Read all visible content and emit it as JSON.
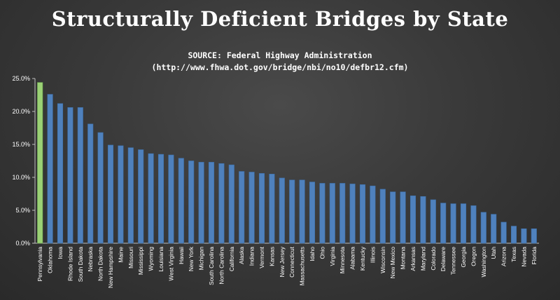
{
  "chart_data": {
    "type": "bar",
    "title": "Structurally Deficient Bridges by State",
    "subtitle_lines": [
      "SOURCE: Federal Highway Administration",
      "(http://www.fhwa.dot.gov/bridge/nbi/no10/defbr12.cfm)"
    ],
    "xlabel": "",
    "ylabel": "",
    "ylim": [
      0,
      0.25
    ],
    "yticks": [
      "0.0%",
      "5.0%",
      "10.0%",
      "15.0%",
      "20.0%",
      "25.0%"
    ],
    "grid": false,
    "categories": [
      "Pennsylvania",
      "Oklahoma",
      "Iowa",
      "Rhode Island",
      "South Dakota",
      "Nebraska",
      "North Dakota",
      "New Hampshire",
      "Maine",
      "Missouri",
      "Mississippi",
      "Wyoming",
      "Louisiana",
      "West Virginia",
      "Hawaii",
      "New York",
      "Michigan",
      "South Carolina",
      "North Carolina",
      "California",
      "Alaska",
      "Indiana",
      "Vermont",
      "Kansas",
      "New Jersey",
      "Connecticut",
      "Massachusetts",
      "Idaho",
      "Ohio",
      "Virginia",
      "Minnesota",
      "Alabama",
      "Kentucky",
      "Illinois",
      "Wisconsin",
      "New Mexico",
      "Montana",
      "Arkansas",
      "Maryland",
      "Colorado",
      "Delaware",
      "Tennessee",
      "Georgia",
      "Oregon",
      "Washington",
      "Utah",
      "Arizona",
      "Texas",
      "Nevada",
      "Florida"
    ],
    "values": [
      0.244,
      0.226,
      0.212,
      0.206,
      0.206,
      0.181,
      0.168,
      0.149,
      0.148,
      0.145,
      0.142,
      0.136,
      0.135,
      0.134,
      0.129,
      0.125,
      0.123,
      0.123,
      0.121,
      0.119,
      0.109,
      0.108,
      0.106,
      0.105,
      0.099,
      0.096,
      0.096,
      0.093,
      0.091,
      0.091,
      0.091,
      0.09,
      0.089,
      0.087,
      0.082,
      0.078,
      0.078,
      0.072,
      0.071,
      0.066,
      0.061,
      0.06,
      0.06,
      0.057,
      0.047,
      0.044,
      0.032,
      0.026,
      0.022,
      0.022
    ],
    "colors": {
      "default": "#4f81bd",
      "highlight": "#9bd175",
      "highlight_index": 0
    }
  }
}
